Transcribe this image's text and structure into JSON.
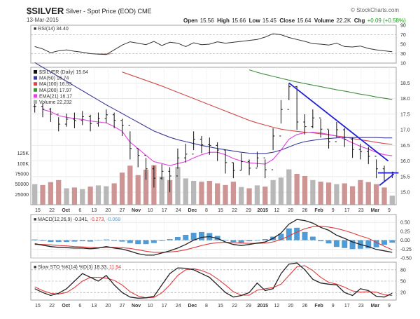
{
  "header": {
    "symbol": "$SILVER",
    "description": "Silver - Spot Price (EOD)",
    "exchange": "CME",
    "credit": "© StockCharts.com",
    "date": "13-Mar-2015",
    "open_label": "Open",
    "open": "15.56",
    "high_label": "High",
    "high": "15.66",
    "low_label": "Low",
    "low": "15.45",
    "close_label": "Close",
    "close": "15.64",
    "volume_label": "Volume",
    "volume": "22.2K",
    "chg_label": "Chg",
    "chg": "+0.09 (+0.58%)"
  },
  "colors": {
    "up": "#111111",
    "down": "#111111",
    "ma50": "#3b3b9a",
    "ma100": "#d04a4a",
    "ma200": "#3f8f3f",
    "ema21": "#e040e0",
    "rsi": "#333333",
    "rsi_fill_low": "#8b4a4a",
    "volume": "#b0b0b0",
    "volume_down": "#c98a8a",
    "macd": "#222222",
    "signal": "#e03c3c",
    "hist": "#4f9bd6",
    "sto_k": "#222222",
    "sto_d": "#e03c3c",
    "trend": "#2323d4"
  },
  "chart_data": [
    {
      "type": "line",
      "title": "RSI(14) 34.40",
      "legend": "RSI(14) 34.40",
      "ylim": [
        10,
        90
      ],
      "yticks": [
        90,
        70,
        50,
        30,
        10
      ],
      "reference_lines": [
        70,
        30
      ],
      "values": [
        45,
        40,
        32,
        36,
        38,
        35,
        33,
        30,
        29,
        28,
        38,
        48,
        55,
        52,
        49,
        56,
        47,
        54,
        52,
        45,
        53,
        49,
        50,
        55,
        52,
        54,
        56,
        58,
        60,
        65,
        72,
        70,
        64,
        60,
        56,
        51,
        50,
        48,
        52,
        45,
        44,
        46,
        41,
        38,
        36,
        34
      ]
    },
    {
      "type": "line",
      "title": "$SILVER (Daily) 15.64",
      "legend": [
        {
          "key": "symbol",
          "label": "$SILVER (Daily) 15.64",
          "color": "#111111"
        },
        {
          "key": "ma50",
          "label": "MA(50) 16.74",
          "color": "#3b3b9a"
        },
        {
          "key": "ma100",
          "label": "MA(100) 16.53",
          "color": "#d04a4a"
        },
        {
          "key": "ma200",
          "label": "MA(200) 17.97",
          "color": "#3f8f3f"
        },
        {
          "key": "ema21",
          "label": "EMA(21) 16.17",
          "color": "#e040e0"
        },
        {
          "key": "volume",
          "label": "Volume 22,232",
          "color": "#b0b0b0"
        }
      ],
      "ylim": [
        14.6,
        19.0
      ],
      "yticks": [
        18.5,
        18.0,
        17.5,
        17.0,
        16.5,
        16.0,
        15.5,
        15.0
      ],
      "volume_ticks": [
        "125K",
        "100K",
        "75000",
        "50000",
        "25000"
      ],
      "volume_ylim": [
        0,
        270000
      ],
      "x_ticks": [
        "15",
        "22",
        "Oct",
        "6",
        "13",
        "20",
        "27",
        "Nov",
        "10",
        "17",
        "24",
        "Dec",
        "8",
        "15",
        "22",
        "29",
        "2015",
        "12",
        "20",
        "26",
        "Feb",
        "9",
        "17",
        "23",
        "Mar",
        "9"
      ],
      "close": [
        17.75,
        17.66,
        17.5,
        17.18,
        17.34,
        17.3,
        17.42,
        17.2,
        17.36,
        17.48,
        17.3,
        17.14,
        16.4,
        16.18,
        15.75,
        15.45,
        15.67,
        15.52,
        16.1,
        16.22,
        16.7,
        16.52,
        16.5,
        16.35,
        15.95,
        15.7,
        15.98,
        15.77,
        16.1,
        15.72,
        16.8,
        17.65,
        18.38,
        17.25,
        17.1,
        17.38,
        17.02,
        16.62,
        17.0,
        16.7,
        16.37,
        16.3,
        16.15,
        15.75,
        15.62,
        15.64
      ],
      "high": [
        17.95,
        17.85,
        17.7,
        17.4,
        17.52,
        17.55,
        17.6,
        17.48,
        17.55,
        17.65,
        17.55,
        17.35,
        16.95,
        16.4,
        16.1,
        15.85,
        15.9,
        15.8,
        16.4,
        16.55,
        16.95,
        16.8,
        16.75,
        16.6,
        16.35,
        15.95,
        16.25,
        16.05,
        16.3,
        16.05,
        17.05,
        17.95,
        18.5,
        18.4,
        17.5,
        17.65,
        17.35,
        17.0,
        17.25,
        17.05,
        16.75,
        16.55,
        16.45,
        16.05,
        15.85,
        15.66
      ],
      "low": [
        17.55,
        17.4,
        17.25,
        16.95,
        17.1,
        17.05,
        17.15,
        16.95,
        17.1,
        17.22,
        17.05,
        16.8,
        16.05,
        15.8,
        15.4,
        15.15,
        15.4,
        15.0,
        15.75,
        15.95,
        16.35,
        16.25,
        16.2,
        16.0,
        15.6,
        15.45,
        15.7,
        15.55,
        15.8,
        15.45,
        16.35,
        17.2,
        17.95,
        17.0,
        16.85,
        17.05,
        16.75,
        16.4,
        16.75,
        16.45,
        16.1,
        16.05,
        15.9,
        15.45,
        15.35,
        15.45
      ],
      "ma50": [
        19.15,
        19.0,
        18.85,
        18.7,
        18.55,
        18.4,
        18.25,
        18.1,
        17.95,
        17.8,
        17.66,
        17.52,
        17.38,
        17.24,
        17.1,
        16.96,
        16.86,
        16.76,
        16.68,
        16.62,
        16.56,
        16.5,
        16.45,
        16.4,
        16.36,
        16.32,
        16.28,
        16.25,
        16.24,
        16.24,
        16.28,
        16.35,
        16.45,
        16.55,
        16.62,
        16.66,
        16.7,
        16.72,
        16.74,
        16.75,
        16.75,
        16.75,
        16.75,
        16.75,
        16.74,
        16.74
      ],
      "ma100": [
        null,
        null,
        null,
        null,
        null,
        null,
        null,
        null,
        null,
        null,
        null,
        18.85,
        18.76,
        18.67,
        18.58,
        18.49,
        18.4,
        18.3,
        18.2,
        18.1,
        18.0,
        17.9,
        17.8,
        17.7,
        17.6,
        17.5,
        17.4,
        17.3,
        17.22,
        17.15,
        17.08,
        17.02,
        16.98,
        16.95,
        16.92,
        16.9,
        16.87,
        16.84,
        16.8,
        16.77,
        16.72,
        16.68,
        16.64,
        16.6,
        16.56,
        16.53
      ],
      "ma200": [
        null,
        null,
        null,
        null,
        null,
        null,
        null,
        null,
        null,
        null,
        null,
        null,
        null,
        null,
        null,
        null,
        null,
        null,
        null,
        null,
        null,
        null,
        null,
        null,
        null,
        null,
        null,
        18.92,
        18.84,
        18.77,
        18.71,
        18.65,
        18.59,
        18.53,
        18.48,
        18.43,
        18.38,
        18.33,
        18.28,
        18.24,
        18.19,
        18.14,
        18.1,
        18.05,
        18.01,
        17.97
      ],
      "ema21": [
        null,
        17.65,
        17.58,
        17.45,
        17.4,
        17.36,
        17.33,
        17.28,
        17.25,
        17.22,
        17.1,
        16.95,
        16.6,
        16.4,
        16.18,
        15.98,
        15.92,
        15.85,
        15.92,
        15.98,
        16.1,
        16.2,
        16.28,
        16.28,
        16.2,
        16.08,
        16.0,
        15.94,
        15.92,
        15.9,
        16.05,
        16.35,
        16.7,
        16.85,
        16.9,
        16.92,
        16.9,
        16.85,
        16.8,
        16.7,
        16.58,
        16.47,
        16.38,
        16.28,
        16.2,
        16.17
      ],
      "volume": [
        50000,
        48000,
        55000,
        60000,
        40000,
        42000,
        38000,
        44000,
        47000,
        45000,
        52000,
        78000,
        95000,
        72000,
        85000,
        96000,
        68000,
        60000,
        92000,
        64000,
        58000,
        56000,
        58000,
        52000,
        48000,
        56000,
        43000,
        40000,
        47000,
        44000,
        60000,
        66000,
        86000,
        75000,
        70000,
        60000,
        56000,
        54000,
        50000,
        52000,
        45000,
        60000,
        55000,
        50000,
        42000,
        22232
      ],
      "trendlines": [
        {
          "x1": 32,
          "y1": 18.5,
          "x2": 44.5,
          "y2": 16.0
        },
        {
          "x1": 43.2,
          "y1": 15.62,
          "x2": 45.8,
          "y2": 15.62
        },
        {
          "x1": 43.4,
          "y1": 15.22,
          "x2": 45.2,
          "y2": 15.58
        }
      ]
    },
    {
      "type": "line",
      "title": "MACD(12,26,9) -0.341, -0.273, -0.068",
      "legend_prefix": "MACD(12,26,9)",
      "legend_values": [
        "-0.341",
        "-0.273",
        "-0.068"
      ],
      "ylim": [
        -0.5,
        0.72
      ],
      "yticks": [
        0.5,
        0.25,
        0.0,
        -0.25,
        -0.5
      ],
      "macd": [
        -0.1,
        -0.14,
        -0.18,
        -0.2,
        -0.21,
        -0.22,
        -0.22,
        -0.24,
        -0.22,
        -0.18,
        -0.22,
        -0.25,
        -0.31,
        -0.38,
        -0.42,
        -0.42,
        -0.36,
        -0.3,
        -0.22,
        -0.12,
        0.0,
        0.08,
        0.1,
        0.05,
        -0.05,
        -0.12,
        -0.15,
        -0.12,
        -0.08,
        -0.05,
        0.05,
        0.2,
        0.45,
        0.58,
        0.55,
        0.48,
        0.36,
        0.28,
        0.14,
        0.05,
        -0.05,
        -0.12,
        -0.18,
        -0.26,
        -0.3,
        -0.34
      ],
      "signal": [
        -0.12,
        -0.12,
        -0.13,
        -0.15,
        -0.16,
        -0.18,
        -0.19,
        -0.2,
        -0.21,
        -0.2,
        -0.2,
        -0.21,
        -0.23,
        -0.27,
        -0.31,
        -0.34,
        -0.34,
        -0.33,
        -0.31,
        -0.27,
        -0.21,
        -0.15,
        -0.1,
        -0.07,
        -0.06,
        -0.07,
        -0.08,
        -0.09,
        -0.09,
        -0.08,
        -0.05,
        0.02,
        0.12,
        0.23,
        0.32,
        0.38,
        0.39,
        0.37,
        0.33,
        0.27,
        0.2,
        0.12,
        0.05,
        -0.06,
        -0.17,
        -0.27
      ]
    },
    {
      "type": "line",
      "title": "Slow STO %K(14) %D(3) 18.33, 11.94",
      "legend_prefix": "Slow STO %K(14) %D(3)",
      "legend_values": [
        "18.33",
        "11.94"
      ],
      "ylim": [
        0,
        100
      ],
      "yticks": [
        80,
        50,
        20
      ],
      "reference_lines": [
        80,
        50,
        20
      ],
      "k": [
        30,
        20,
        12,
        18,
        30,
        50,
        70,
        60,
        50,
        65,
        40,
        20,
        8,
        5,
        6,
        10,
        40,
        70,
        85,
        84,
        80,
        70,
        60,
        40,
        20,
        8,
        12,
        20,
        45,
        25,
        30,
        70,
        95,
        98,
        80,
        55,
        45,
        42,
        40,
        20,
        12,
        30,
        25,
        10,
        8,
        18
      ],
      "d": [
        35,
        25,
        18,
        16,
        20,
        33,
        50,
        60,
        60,
        58,
        52,
        40,
        22,
        11,
        6,
        7,
        19,
        40,
        65,
        80,
        83,
        78,
        70,
        56,
        40,
        22,
        13,
        13,
        26,
        30,
        33,
        42,
        65,
        88,
        91,
        78,
        60,
        47,
        42,
        34,
        24,
        21,
        22,
        21,
        14,
        12
      ]
    }
  ]
}
